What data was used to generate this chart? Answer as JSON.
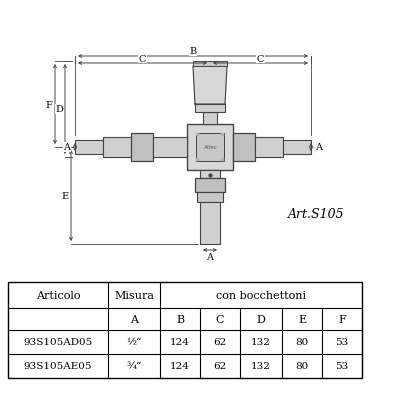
{
  "title": "Art.S105",
  "bg_color": "#ffffff",
  "line_color": "#444444",
  "text_color": "#000000",
  "table": {
    "col_headers": [
      "Articolo",
      "Misura",
      "con bocchettoni"
    ],
    "sub_headers": [
      "A",
      "B",
      "C",
      "D",
      "E",
      "F"
    ],
    "rows": [
      [
        "93S105AD05",
        "½“",
        "124",
        "62",
        "132",
        "80",
        "53"
      ],
      [
        "93S105AE05",
        "¾“",
        "124",
        "62",
        "132",
        "80",
        "53"
      ]
    ]
  }
}
